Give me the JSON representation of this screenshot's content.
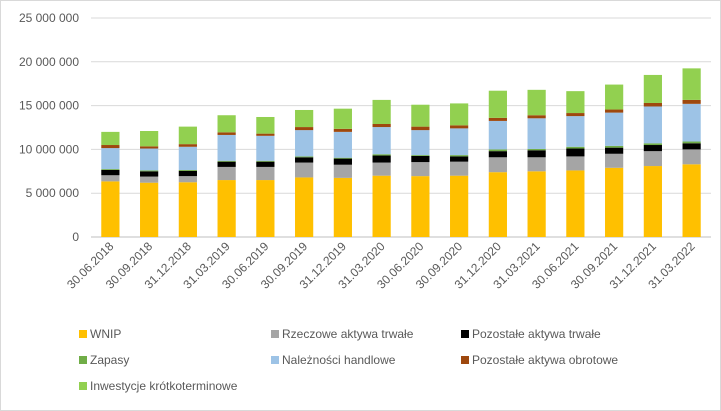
{
  "chart_data": {
    "type": "bar",
    "stacked": true,
    "categories": [
      "30.06.2018",
      "30.09.2018",
      "31.12.2018",
      "31.03.2019",
      "30.06.2019",
      "30.09.2019",
      "31.12.2019",
      "31.03.2020",
      "30.06.2020",
      "30.09.2020",
      "31.12.2020",
      "31.03.2021",
      "30.06.2021",
      "30.09.2021",
      "31.12.2021",
      "31.03.2022"
    ],
    "series": [
      {
        "name": "WNIP",
        "color": "#FFC000",
        "values": [
          6350000,
          6200000,
          6250000,
          6500000,
          6500000,
          6800000,
          6750000,
          7000000,
          6950000,
          7000000,
          7400000,
          7500000,
          7600000,
          7900000,
          8100000,
          8300000
        ]
      },
      {
        "name": "Rzeczowe aktywa trwałe",
        "color": "#A5A5A5",
        "values": [
          700000,
          700000,
          700000,
          1500000,
          1500000,
          1700000,
          1500000,
          1500000,
          1600000,
          1600000,
          1700000,
          1600000,
          1600000,
          1600000,
          1700000,
          1700000
        ]
      },
      {
        "name": "Pozostałe aktywa trwałe",
        "color": "#000000",
        "values": [
          600000,
          600000,
          600000,
          600000,
          600000,
          600000,
          700000,
          800000,
          700000,
          600000,
          700000,
          800000,
          900000,
          700000,
          700000,
          700000
        ]
      },
      {
        "name": "Zapasy",
        "color": "#70AD47",
        "values": [
          100000,
          100000,
          100000,
          100000,
          100000,
          100000,
          100000,
          150000,
          100000,
          150000,
          200000,
          150000,
          200000,
          200000,
          200000,
          200000
        ]
      },
      {
        "name": "Należności handlowe",
        "color": "#9DC3E6",
        "values": [
          2400000,
          2500000,
          2650000,
          2950000,
          2850000,
          3000000,
          2950000,
          3100000,
          2850000,
          3050000,
          3250000,
          3500000,
          3500000,
          3800000,
          4200000,
          4300000
        ]
      },
      {
        "name": "Pozostałe aktywa obrotowe",
        "color": "#9E480E",
        "values": [
          350000,
          250000,
          300000,
          300000,
          250000,
          350000,
          350000,
          350000,
          400000,
          350000,
          350000,
          350000,
          350000,
          350000,
          400000,
          450000
        ]
      },
      {
        "name": "Inwestycje krótkoterminowe",
        "color": "#92D050",
        "values": [
          1500000,
          1750000,
          2000000,
          1950000,
          1900000,
          1950000,
          2300000,
          2750000,
          2500000,
          2500000,
          3100000,
          2900000,
          2500000,
          2850000,
          3200000,
          3600000
        ]
      }
    ],
    "yticks": [
      "0",
      "5 000 000",
      "10 000 000",
      "15 000 000",
      "20 000 000",
      "25 000 000"
    ],
    "ylim": [
      0,
      25000000
    ],
    "title": "",
    "xlabel": "",
    "ylabel": "",
    "grid": true,
    "legend_position": "bottom"
  }
}
